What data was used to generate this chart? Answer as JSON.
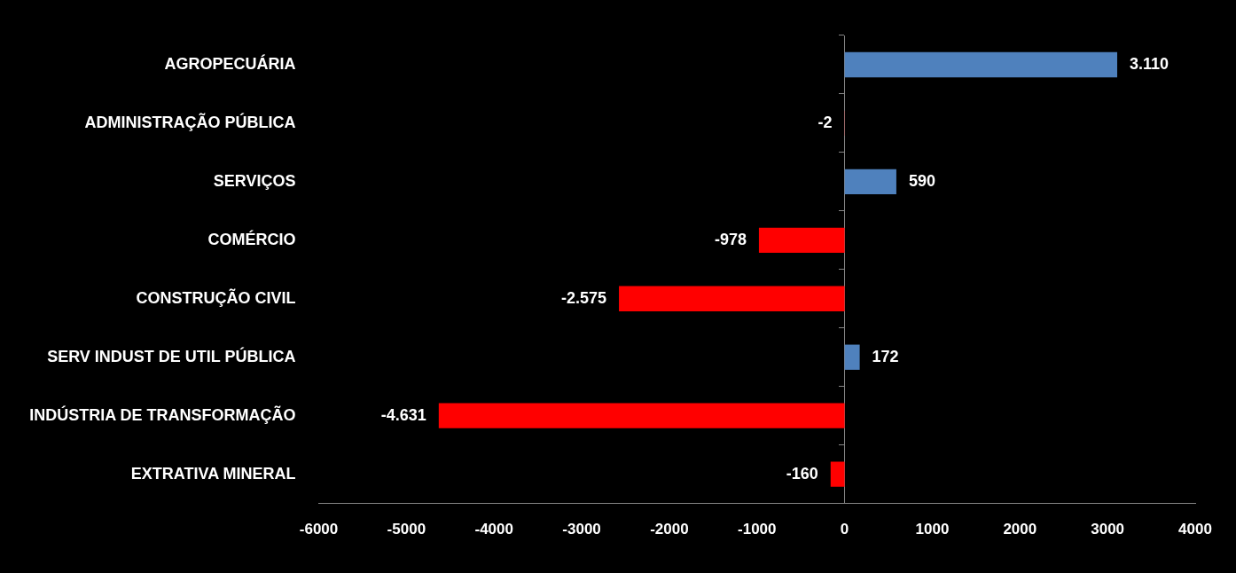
{
  "chart_data": {
    "type": "bar",
    "orientation": "horizontal",
    "categories": [
      "AGROPECUÁRIA",
      "ADMINISTRAÇÃO PÚBLICA",
      "SERVIÇOS",
      "COMÉRCIO",
      "CONSTRUÇÃO CIVIL",
      "SERV INDUST DE UTIL PÚBLICA",
      "INDÚSTRIA DE TRANSFORMAÇÃO",
      "EXTRATIVA MINERAL"
    ],
    "values": [
      3110,
      -2,
      590,
      -978,
      -2575,
      172,
      -4631,
      -160
    ],
    "value_labels": [
      "3.110",
      "-2",
      "590",
      "-978",
      "-2.575",
      "172",
      "-4.631",
      "-160"
    ],
    "colors": [
      "#4f81bd",
      "#ff0000",
      "#4f81bd",
      "#ff0000",
      "#ff0000",
      "#4f81bd",
      "#ff0000",
      "#ff0000"
    ],
    "xlim": [
      -6000,
      4000
    ],
    "xticks": [
      -6000,
      -5000,
      -4000,
      -3000,
      -2000,
      -1000,
      0,
      1000,
      2000,
      3000,
      4000
    ],
    "legend": false
  }
}
